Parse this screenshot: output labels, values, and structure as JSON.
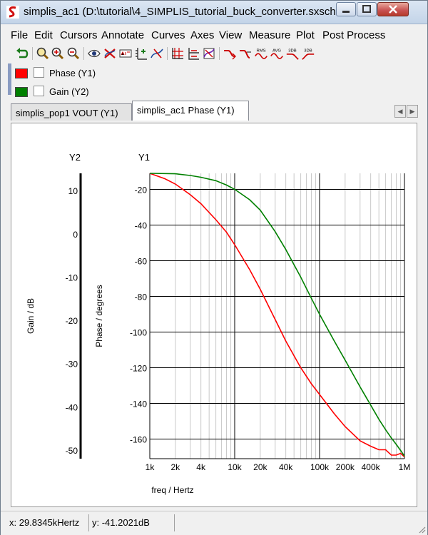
{
  "window": {
    "title": "simplis_ac1 (D:\\tutorial\\4_SIMPLIS_tutorial_buck_converter.sxsch...",
    "minimize_icon": "minimize-icon",
    "maximize_icon": "maximize-icon",
    "close_icon": "close-icon"
  },
  "menu": [
    "File",
    "Edit",
    "Cursors",
    "Annotate",
    "Curves",
    "Axes",
    "View",
    "Measure",
    "Plot",
    "Post Process"
  ],
  "toolbar": {
    "icons": [
      "undo-icon",
      "zoom-full-icon",
      "zoom-in-icon",
      "zoom-out-icon",
      "eye-icon",
      "delete-curve-icon",
      "label-icon",
      "add-axis-icon",
      "edit-curve-icon",
      "grid-icon",
      "stacked-axes-icon",
      "curve-color-icon",
      "step-icon",
      "step-down-icon",
      "rms-icon",
      "avg-icon",
      "3db-lowpass-icon",
      "3db-highpass-icon"
    ],
    "button_labels": {
      "rms": "RMS",
      "avg": "AVG",
      "db1": "3DB",
      "db2": "3DB"
    }
  },
  "legend": [
    {
      "label": "Phase (Y1)",
      "color": "#ff0000"
    },
    {
      "label": "Gain (Y2)",
      "color": "#008000"
    }
  ],
  "tabs": [
    {
      "label": "simplis_pop1 VOUT (Y1)",
      "active": false
    },
    {
      "label": "simplis_ac1 Phase (Y1)",
      "active": true
    }
  ],
  "chart_data": {
    "type": "line",
    "x_scale": "log",
    "xlabel": "freq / Hertz",
    "xlim": [
      1000,
      1000000
    ],
    "x_ticks": [
      1000,
      2000,
      4000,
      10000,
      20000,
      40000,
      100000,
      200000,
      400000,
      1000000
    ],
    "x_tick_labels": [
      "1k",
      "2k",
      "4k",
      "10k",
      "20k",
      "40k",
      "100k",
      "200k",
      "400k",
      "1M"
    ],
    "y1": {
      "axis_title": "Y1",
      "label": "Phase / degrees",
      "lim": [
        -171,
        -11
      ],
      "ticks": [
        -20,
        -40,
        -60,
        -80,
        -100,
        -120,
        -140,
        -160
      ],
      "tick_labels": [
        "-20",
        "-40",
        "-60",
        "-80",
        "-100",
        "-120",
        "-140",
        "-160"
      ]
    },
    "y2": {
      "axis_title": "Y2",
      "label": "Gain / dB",
      "lim": [
        -52,
        14
      ],
      "ticks": [
        10,
        0,
        -10,
        -20,
        -30,
        -40,
        -50
      ],
      "tick_labels": [
        "10",
        "0",
        "-10",
        "-20",
        "-30",
        "-40",
        "-50"
      ]
    },
    "grid": true,
    "series": [
      {
        "name": "Phase (Y1)",
        "axis": "y1",
        "color": "#ff0000",
        "x": [
          1000,
          1500,
          2000,
          3000,
          4000,
          6000,
          8000,
          10000,
          15000,
          20000,
          30000,
          40000,
          60000,
          80000,
          100000,
          150000,
          200000,
          300000,
          400000,
          500000,
          600000,
          700000,
          800000,
          900000,
          1000000
        ],
        "y": [
          -11,
          -14,
          -17,
          -23,
          -28,
          -37,
          -44,
          -51,
          -65,
          -76,
          -93,
          -105,
          -120,
          -129,
          -135,
          -146,
          -153,
          -161,
          -164,
          -166,
          -166,
          -169,
          -169,
          -168,
          -170
        ]
      },
      {
        "name": "Gain (Y2)",
        "axis": "y2",
        "color": "#008000",
        "x": [
          1000,
          2000,
          3000,
          4000,
          6000,
          8000,
          10000,
          15000,
          20000,
          30000,
          40000,
          60000,
          80000,
          100000,
          150000,
          200000,
          300000,
          400000,
          500000,
          600000,
          700000,
          800000,
          900000,
          1000000
        ],
        "y": [
          14,
          13.9,
          13.5,
          13.1,
          12.3,
          11.3,
          10.3,
          7.9,
          5.5,
          0.5,
          -3.6,
          -10,
          -14.9,
          -18.6,
          -24.9,
          -29.2,
          -35.4,
          -39.6,
          -42.9,
          -45.3,
          -47.2,
          -48.7,
          -50.1,
          -51.4
        ]
      }
    ]
  },
  "status": {
    "x_readout": "x: 29.8345kHertz",
    "y_readout": "y: -41.2021dB"
  }
}
